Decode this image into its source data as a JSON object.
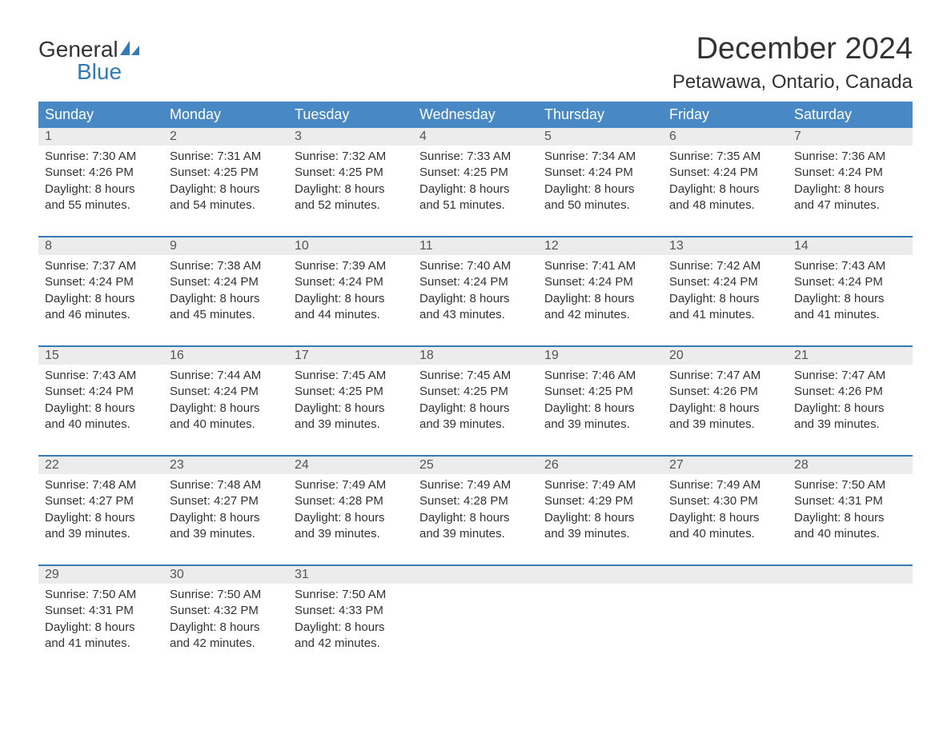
{
  "logo": {
    "top": "General",
    "bottom": "Blue",
    "icon_color": "#337ab7"
  },
  "title": "December 2024",
  "title_fontsize": 38,
  "location": "Petawawa, Ontario, Canada",
  "location_fontsize": 24,
  "header_bg": "#4788c5",
  "header_text_color": "#ffffff",
  "header_fontsize": 18,
  "daynum_bg": "#ececec",
  "body_text_color": "#333333",
  "accent_color": "#337ab7",
  "background_color": "#ffffff",
  "columns": [
    "Sunday",
    "Monday",
    "Tuesday",
    "Wednesday",
    "Thursday",
    "Friday",
    "Saturday"
  ],
  "col_width_pct": 14.2857,
  "weeks": [
    [
      {
        "n": "1",
        "sunrise": "Sunrise: 7:30 AM",
        "sunset": "Sunset: 4:26 PM",
        "d1": "Daylight: 8 hours",
        "d2": "and 55 minutes."
      },
      {
        "n": "2",
        "sunrise": "Sunrise: 7:31 AM",
        "sunset": "Sunset: 4:25 PM",
        "d1": "Daylight: 8 hours",
        "d2": "and 54 minutes."
      },
      {
        "n": "3",
        "sunrise": "Sunrise: 7:32 AM",
        "sunset": "Sunset: 4:25 PM",
        "d1": "Daylight: 8 hours",
        "d2": "and 52 minutes."
      },
      {
        "n": "4",
        "sunrise": "Sunrise: 7:33 AM",
        "sunset": "Sunset: 4:25 PM",
        "d1": "Daylight: 8 hours",
        "d2": "and 51 minutes."
      },
      {
        "n": "5",
        "sunrise": "Sunrise: 7:34 AM",
        "sunset": "Sunset: 4:24 PM",
        "d1": "Daylight: 8 hours",
        "d2": "and 50 minutes."
      },
      {
        "n": "6",
        "sunrise": "Sunrise: 7:35 AM",
        "sunset": "Sunset: 4:24 PM",
        "d1": "Daylight: 8 hours",
        "d2": "and 48 minutes."
      },
      {
        "n": "7",
        "sunrise": "Sunrise: 7:36 AM",
        "sunset": "Sunset: 4:24 PM",
        "d1": "Daylight: 8 hours",
        "d2": "and 47 minutes."
      }
    ],
    [
      {
        "n": "8",
        "sunrise": "Sunrise: 7:37 AM",
        "sunset": "Sunset: 4:24 PM",
        "d1": "Daylight: 8 hours",
        "d2": "and 46 minutes."
      },
      {
        "n": "9",
        "sunrise": "Sunrise: 7:38 AM",
        "sunset": "Sunset: 4:24 PM",
        "d1": "Daylight: 8 hours",
        "d2": "and 45 minutes."
      },
      {
        "n": "10",
        "sunrise": "Sunrise: 7:39 AM",
        "sunset": "Sunset: 4:24 PM",
        "d1": "Daylight: 8 hours",
        "d2": "and 44 minutes."
      },
      {
        "n": "11",
        "sunrise": "Sunrise: 7:40 AM",
        "sunset": "Sunset: 4:24 PM",
        "d1": "Daylight: 8 hours",
        "d2": "and 43 minutes."
      },
      {
        "n": "12",
        "sunrise": "Sunrise: 7:41 AM",
        "sunset": "Sunset: 4:24 PM",
        "d1": "Daylight: 8 hours",
        "d2": "and 42 minutes."
      },
      {
        "n": "13",
        "sunrise": "Sunrise: 7:42 AM",
        "sunset": "Sunset: 4:24 PM",
        "d1": "Daylight: 8 hours",
        "d2": "and 41 minutes."
      },
      {
        "n": "14",
        "sunrise": "Sunrise: 7:43 AM",
        "sunset": "Sunset: 4:24 PM",
        "d1": "Daylight: 8 hours",
        "d2": "and 41 minutes."
      }
    ],
    [
      {
        "n": "15",
        "sunrise": "Sunrise: 7:43 AM",
        "sunset": "Sunset: 4:24 PM",
        "d1": "Daylight: 8 hours",
        "d2": "and 40 minutes."
      },
      {
        "n": "16",
        "sunrise": "Sunrise: 7:44 AM",
        "sunset": "Sunset: 4:24 PM",
        "d1": "Daylight: 8 hours",
        "d2": "and 40 minutes."
      },
      {
        "n": "17",
        "sunrise": "Sunrise: 7:45 AM",
        "sunset": "Sunset: 4:25 PM",
        "d1": "Daylight: 8 hours",
        "d2": "and 39 minutes."
      },
      {
        "n": "18",
        "sunrise": "Sunrise: 7:45 AM",
        "sunset": "Sunset: 4:25 PM",
        "d1": "Daylight: 8 hours",
        "d2": "and 39 minutes."
      },
      {
        "n": "19",
        "sunrise": "Sunrise: 7:46 AM",
        "sunset": "Sunset: 4:25 PM",
        "d1": "Daylight: 8 hours",
        "d2": "and 39 minutes."
      },
      {
        "n": "20",
        "sunrise": "Sunrise: 7:47 AM",
        "sunset": "Sunset: 4:26 PM",
        "d1": "Daylight: 8 hours",
        "d2": "and 39 minutes."
      },
      {
        "n": "21",
        "sunrise": "Sunrise: 7:47 AM",
        "sunset": "Sunset: 4:26 PM",
        "d1": "Daylight: 8 hours",
        "d2": "and 39 minutes."
      }
    ],
    [
      {
        "n": "22",
        "sunrise": "Sunrise: 7:48 AM",
        "sunset": "Sunset: 4:27 PM",
        "d1": "Daylight: 8 hours",
        "d2": "and 39 minutes."
      },
      {
        "n": "23",
        "sunrise": "Sunrise: 7:48 AM",
        "sunset": "Sunset: 4:27 PM",
        "d1": "Daylight: 8 hours",
        "d2": "and 39 minutes."
      },
      {
        "n": "24",
        "sunrise": "Sunrise: 7:49 AM",
        "sunset": "Sunset: 4:28 PM",
        "d1": "Daylight: 8 hours",
        "d2": "and 39 minutes."
      },
      {
        "n": "25",
        "sunrise": "Sunrise: 7:49 AM",
        "sunset": "Sunset: 4:28 PM",
        "d1": "Daylight: 8 hours",
        "d2": "and 39 minutes."
      },
      {
        "n": "26",
        "sunrise": "Sunrise: 7:49 AM",
        "sunset": "Sunset: 4:29 PM",
        "d1": "Daylight: 8 hours",
        "d2": "and 39 minutes."
      },
      {
        "n": "27",
        "sunrise": "Sunrise: 7:49 AM",
        "sunset": "Sunset: 4:30 PM",
        "d1": "Daylight: 8 hours",
        "d2": "and 40 minutes."
      },
      {
        "n": "28",
        "sunrise": "Sunrise: 7:50 AM",
        "sunset": "Sunset: 4:31 PM",
        "d1": "Daylight: 8 hours",
        "d2": "and 40 minutes."
      }
    ],
    [
      {
        "n": "29",
        "sunrise": "Sunrise: 7:50 AM",
        "sunset": "Sunset: 4:31 PM",
        "d1": "Daylight: 8 hours",
        "d2": "and 41 minutes."
      },
      {
        "n": "30",
        "sunrise": "Sunrise: 7:50 AM",
        "sunset": "Sunset: 4:32 PM",
        "d1": "Daylight: 8 hours",
        "d2": "and 42 minutes."
      },
      {
        "n": "31",
        "sunrise": "Sunrise: 7:50 AM",
        "sunset": "Sunset: 4:33 PM",
        "d1": "Daylight: 8 hours",
        "d2": "and 42 minutes."
      },
      null,
      null,
      null,
      null
    ]
  ]
}
